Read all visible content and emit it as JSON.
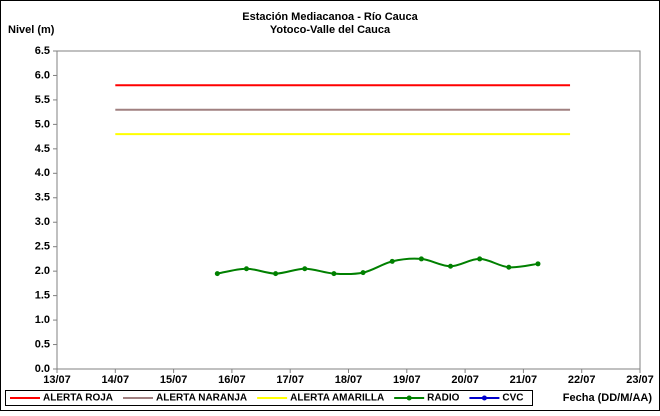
{
  "chart_data": {
    "type": "line",
    "title": "Estación Mediacanoa - Río Cauca",
    "subtitle": "Yotoco-Valle del Cauca",
    "y_label": "Nivel (m)",
    "x_label": "Fecha (DD/M/AA)",
    "xlim": [
      13,
      23
    ],
    "xticks": [
      {
        "value": 13,
        "label": "13/07"
      },
      {
        "value": 14,
        "label": "14/07"
      },
      {
        "value": 15,
        "label": "15/07"
      },
      {
        "value": 16,
        "label": "16/07"
      },
      {
        "value": 17,
        "label": "17/07"
      },
      {
        "value": 18,
        "label": "18/07"
      },
      {
        "value": 19,
        "label": "19/07"
      },
      {
        "value": 20,
        "label": "20/07"
      },
      {
        "value": 21,
        "label": "21/07"
      },
      {
        "value": 22,
        "label": "22/07"
      },
      {
        "value": 23,
        "label": "23/07"
      }
    ],
    "ylim": [
      0,
      6.5
    ],
    "yticks": [
      {
        "value": 0,
        "label": "0.0"
      },
      0.5,
      {
        "value": 1,
        "label": "1.0"
      },
      1.5,
      {
        "value": 2,
        "label": "2.0"
      },
      2.5,
      {
        "value": 3,
        "label": "3.0"
      },
      3.5,
      {
        "value": 4,
        "label": "4.0"
      },
      4.5,
      {
        "value": 5,
        "label": "5.0"
      },
      5.5,
      {
        "value": 6,
        "label": "6.0"
      },
      6.5
    ],
    "grid": false,
    "legend": "bottom",
    "series": [
      {
        "name": "ALERTA ROJA",
        "color": "#ff0000",
        "x": [
          14,
          21.8
        ],
        "values": [
          5.8,
          5.8
        ]
      },
      {
        "name": "ALERTA NARANJA",
        "color": "#a08080",
        "x": [
          14,
          21.8
        ],
        "values": [
          5.3,
          5.3
        ]
      },
      {
        "name": "ALERTA AMARILLA",
        "color": "#ffff00",
        "x": [
          14,
          21.8
        ],
        "values": [
          4.8,
          4.8
        ]
      },
      {
        "name": "RADIO",
        "color": "#008000",
        "markers": true,
        "x": [
          15.75,
          16.25,
          16.75,
          17.25,
          17.75,
          18.25,
          18.75,
          19.25,
          19.75,
          20.25,
          20.75,
          21.25
        ],
        "values": [
          1.95,
          2.05,
          1.95,
          2.05,
          1.95,
          1.97,
          2.2,
          2.25,
          2.1,
          2.25,
          2.08,
          2.15
        ]
      },
      {
        "name": "CVC",
        "color": "#0000cc",
        "markers": true,
        "x": [],
        "values": []
      }
    ]
  }
}
